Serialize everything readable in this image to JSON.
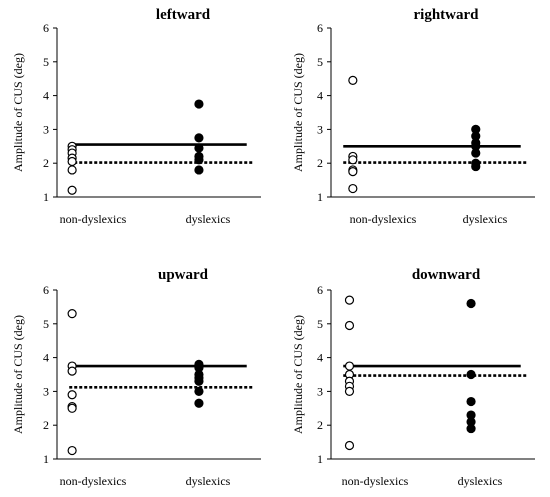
{
  "chart_data": [
    {
      "type": "scatter",
      "title": "leftward",
      "ylabel": "Amplitude of CUS (deg)",
      "ylim": [
        1,
        6
      ],
      "yticks": [
        "1",
        "2",
        "3",
        "4",
        "5",
        "6"
      ],
      "categories": [
        "non-dyslexics",
        "dyslexics"
      ],
      "series": [
        {
          "values": [
            2.5,
            2.4,
            2.3,
            2.15,
            2.05,
            1.8,
            1.2
          ],
          "marker": "open-circle"
        },
        {
          "values": [
            3.75,
            2.75,
            2.45,
            2.2,
            2.1,
            1.8
          ],
          "marker": "filled-circle"
        }
      ],
      "reference_lines": [
        {
          "style": "solid",
          "value": 2.55
        },
        {
          "style": "dotted",
          "value": 2.02
        }
      ]
    },
    {
      "type": "scatter",
      "title": "rightward",
      "ylabel": "Amplitude of CUS (deg)",
      "ylim": [
        1,
        6
      ],
      "yticks": [
        "1",
        "2",
        "3",
        "4",
        "5",
        "6"
      ],
      "categories": [
        "non-dyslexics",
        "dyslexics"
      ],
      "series": [
        {
          "values": [
            4.45,
            2.2,
            2.1,
            1.8,
            1.75,
            1.25
          ],
          "marker": "open-circle"
        },
        {
          "values": [
            3.0,
            2.8,
            2.6,
            2.5,
            2.3,
            2.0,
            1.9
          ],
          "marker": "filled-circle"
        }
      ],
      "reference_lines": [
        {
          "style": "solid",
          "value": 2.5
        },
        {
          "style": "dotted",
          "value": 2.02
        }
      ]
    },
    {
      "type": "scatter",
      "title": "upward",
      "ylabel": "Amplitude of CUS (deg)",
      "ylim": [
        1,
        6
      ],
      "yticks": [
        "1",
        "2",
        "3",
        "4",
        "5",
        "6"
      ],
      "categories": [
        "non-dyslexics",
        "dyslexics"
      ],
      "series": [
        {
          "values": [
            5.3,
            3.75,
            3.6,
            2.9,
            2.55,
            2.5,
            1.25
          ],
          "marker": "open-circle"
        },
        {
          "values": [
            3.8,
            3.7,
            3.5,
            3.4,
            3.3,
            3.0,
            2.65
          ],
          "marker": "filled-circle"
        }
      ],
      "reference_lines": [
        {
          "style": "solid",
          "value": 3.75
        },
        {
          "style": "dotted",
          "value": 3.12
        }
      ]
    },
    {
      "type": "scatter",
      "title": "downward",
      "ylabel": "Amplitude of CUS (deg)",
      "ylim": [
        1,
        6
      ],
      "yticks": [
        "1",
        "2",
        "3",
        "4",
        "5",
        "6"
      ],
      "categories": [
        "non-dyslexics",
        "dyslexics"
      ],
      "series": [
        {
          "values": [
            5.7,
            4.95,
            3.75,
            3.5,
            3.3,
            3.15,
            3.0,
            1.4
          ],
          "marker": "open-circle"
        },
        {
          "values": [
            5.6,
            3.5,
            2.7,
            2.3,
            2.1,
            1.9
          ],
          "marker": "filled-circle"
        }
      ],
      "reference_lines": [
        {
          "style": "solid",
          "value": 3.75
        },
        {
          "style": "dotted",
          "value": 3.47
        }
      ]
    }
  ]
}
